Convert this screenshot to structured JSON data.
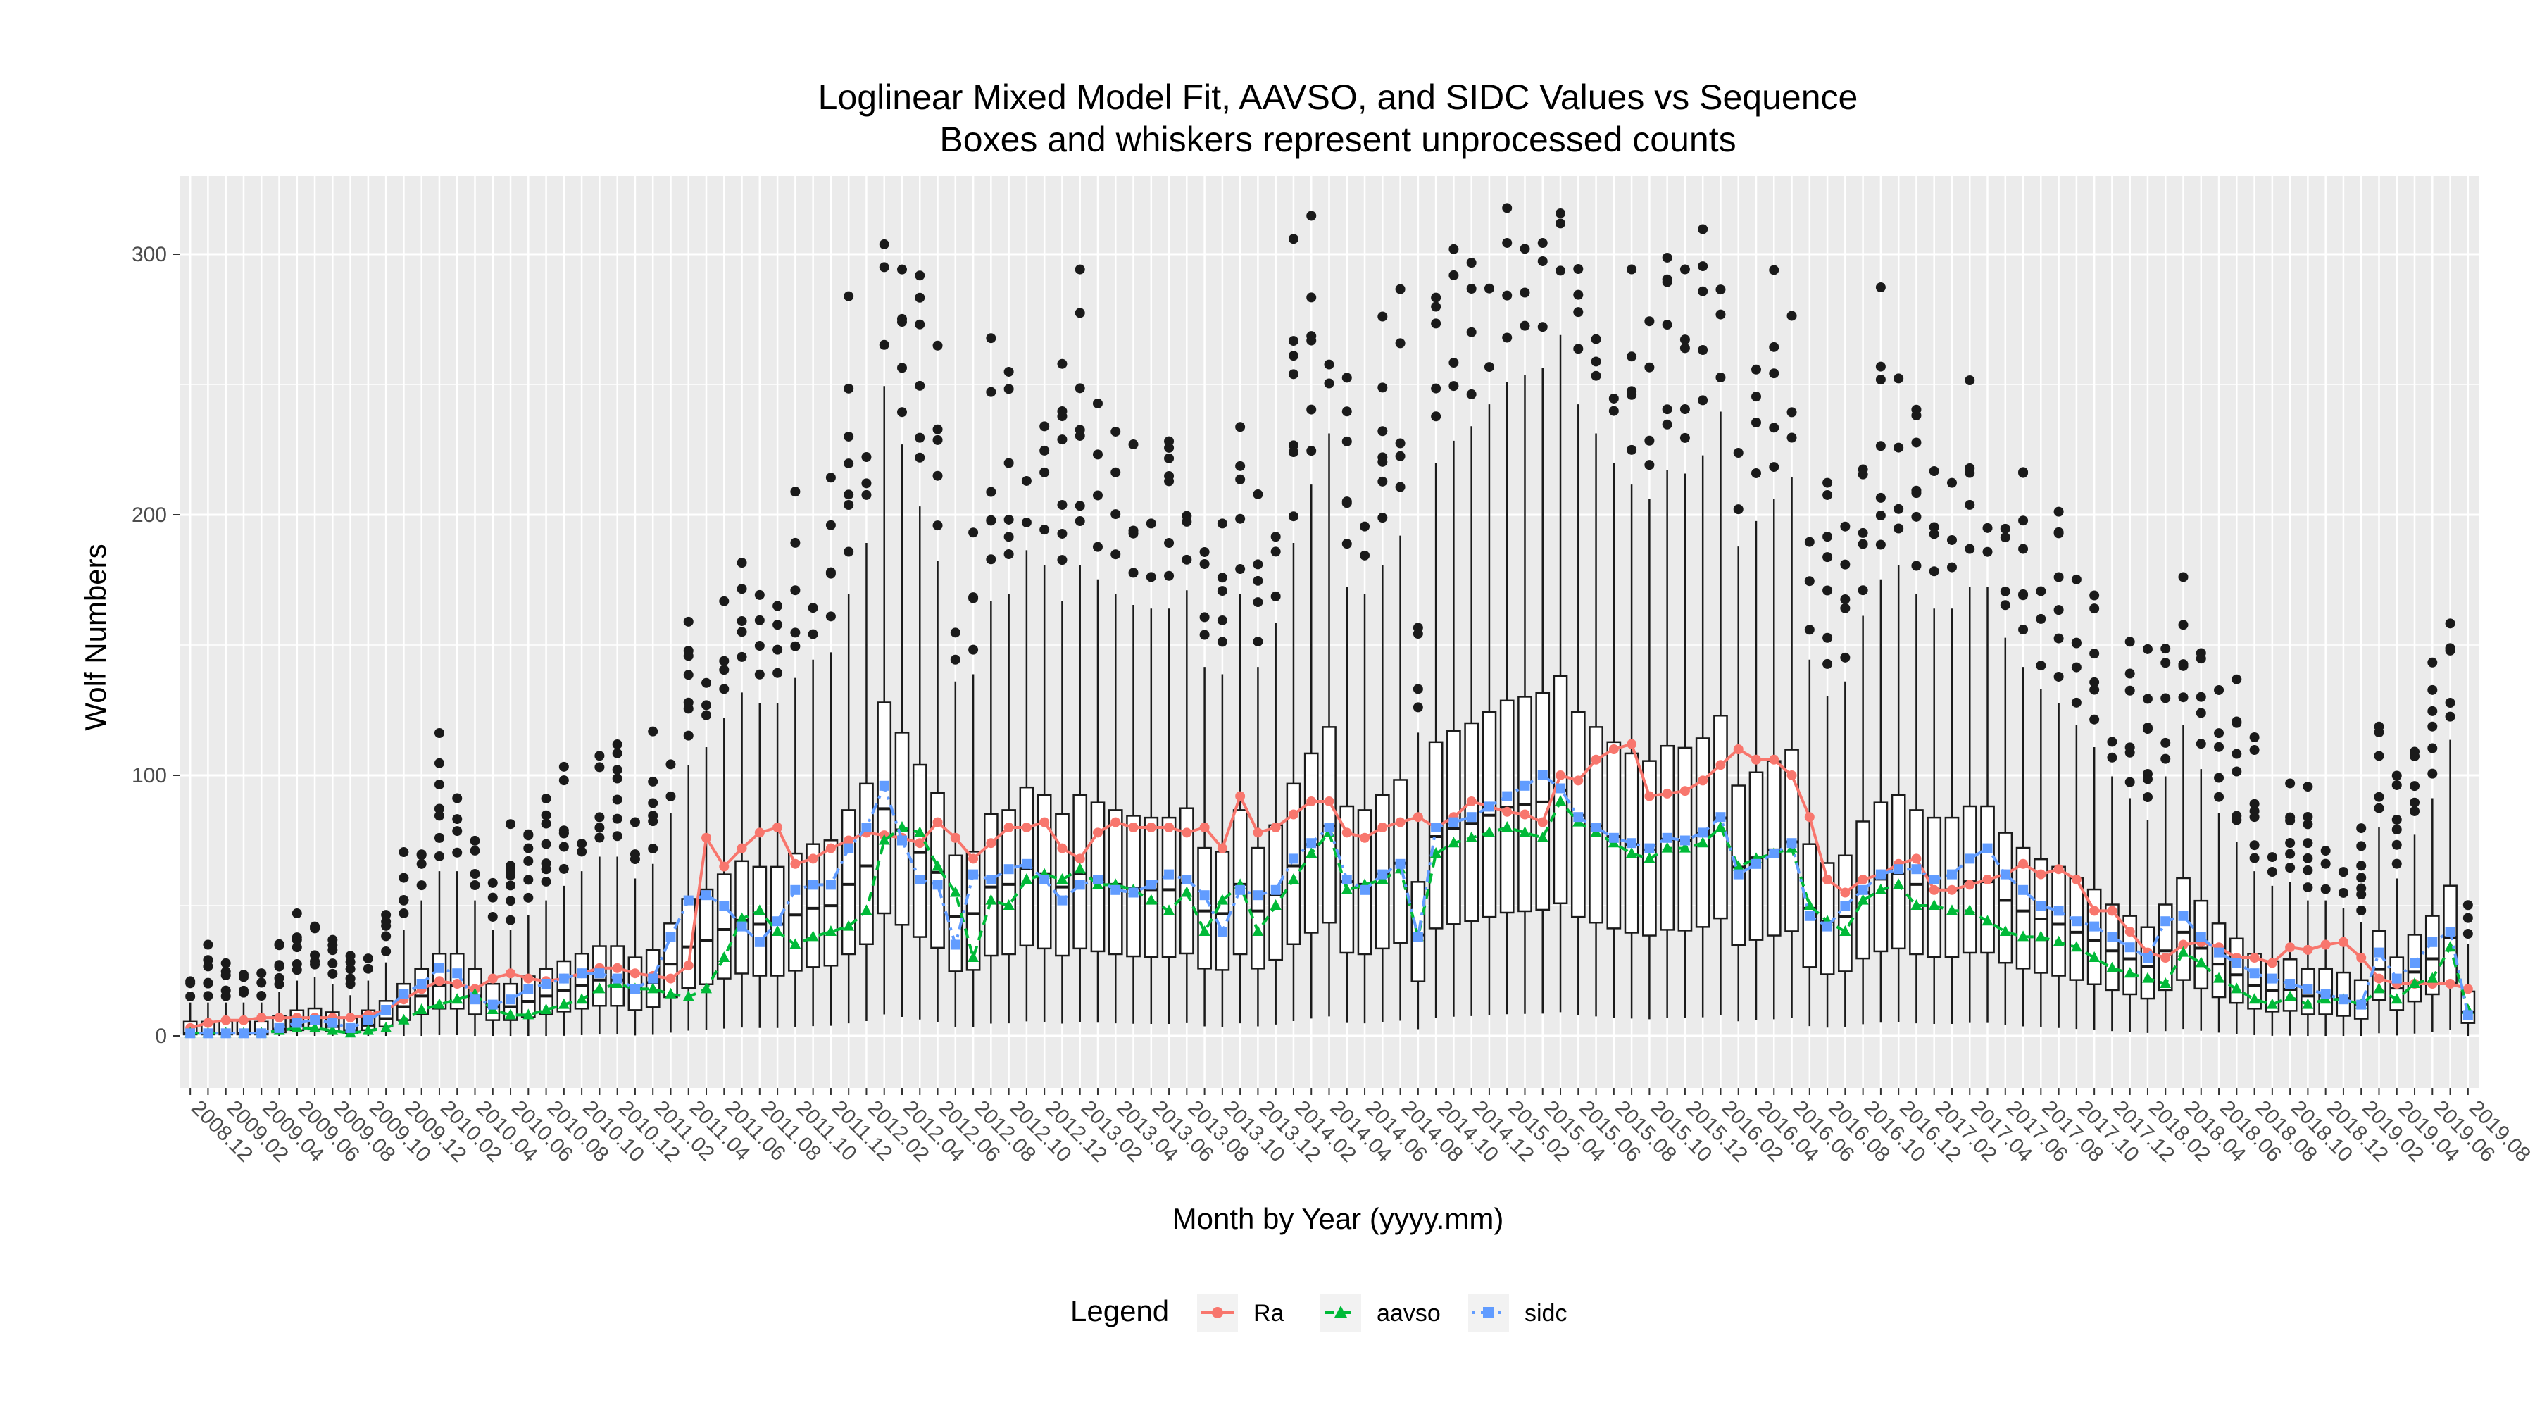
{
  "chart_data": {
    "type": "boxplot+line",
    "title": "Loglinear Mixed Model Fit, AAVSO, and SIDC Values vs Sequence",
    "subtitle": "Boxes and whiskers represent unprocessed counts",
    "xlabel": "Month by Year (yyyy.mm)",
    "ylabel": "Wolf Numbers",
    "ylim": [
      -20,
      330
    ],
    "yticks": [
      0,
      100,
      200,
      300
    ],
    "grid": true,
    "legend": {
      "title": "Legend",
      "position": "bottom",
      "entries": [
        {
          "name": "Ra",
          "color": "#F8766D",
          "marker": "circle",
          "dash": "solid"
        },
        {
          "name": "aavso",
          "color": "#00BA38",
          "marker": "triangle",
          "dash": "dashed"
        },
        {
          "name": "sidc",
          "color": "#619CFF",
          "marker": "square",
          "dash": "dotdash"
        }
      ]
    },
    "x_start": "2008.12",
    "n_months": 129,
    "tick_labels": [
      "2008.12",
      "2009.02",
      "2009.04",
      "2009.06",
      "2009.08",
      "2009.10",
      "2009.12",
      "2010.02",
      "2010.04",
      "2010.06",
      "2010.08",
      "2010.10",
      "2010.12",
      "2011.02",
      "2011.04",
      "2011.06",
      "2011.08",
      "2011.10",
      "2011.12",
      "2012.02",
      "2012.04",
      "2012.06",
      "2012.08",
      "2012.10",
      "2012.12",
      "2013.02",
      "2013.04",
      "2013.06",
      "2013.08",
      "2013.10",
      "2013.12",
      "2014.02",
      "2014.04",
      "2014.06",
      "2014.08",
      "2014.10",
      "2014.12",
      "2015.02",
      "2015.04",
      "2015.06",
      "2015.08",
      "2015.10",
      "2015.12",
      "2016.02",
      "2016.04",
      "2016.06",
      "2016.08",
      "2016.10",
      "2016.12",
      "2017.02",
      "2017.04",
      "2017.06",
      "2017.08",
      "2017.10",
      "2017.12",
      "2018.02",
      "2018.04",
      "2018.06",
      "2018.08",
      "2018.10",
      "2018.12",
      "2019.02",
      "2019.04",
      "2019.06",
      "2019.08"
    ],
    "series": [
      {
        "name": "Ra",
        "values": [
          3,
          5,
          6,
          6,
          7,
          7,
          7,
          7,
          7,
          7,
          8,
          10,
          14,
          18,
          21,
          20,
          18,
          22,
          24,
          22,
          21,
          22,
          24,
          26,
          26,
          24,
          23,
          22,
          27,
          76,
          65,
          72,
          78,
          80,
          66,
          68,
          72,
          75,
          78,
          77,
          76,
          74,
          82,
          76,
          68,
          74,
          80,
          80,
          82,
          72,
          68,
          78,
          82,
          80,
          80,
          80,
          78,
          80,
          72,
          92,
          78,
          80,
          85,
          90,
          90,
          78,
          76,
          80,
          82,
          84,
          80,
          84,
          90,
          88,
          86,
          85,
          82,
          100,
          98,
          106,
          110,
          112,
          92,
          93,
          94,
          98,
          104,
          110,
          106,
          106,
          100,
          84,
          60,
          55,
          60,
          62,
          66,
          68,
          56,
          56,
          58,
          60,
          62,
          66,
          62,
          64,
          60,
          48,
          48,
          40,
          32,
          30,
          35,
          36,
          34,
          30,
          30,
          28,
          34,
          33,
          35,
          36,
          30,
          22,
          20,
          20,
          20,
          20,
          18
        ]
      },
      {
        "name": "aavso",
        "values": [
          1,
          1,
          1,
          1,
          1,
          2,
          3,
          3,
          2,
          1,
          2,
          3,
          6,
          10,
          12,
          14,
          16,
          10,
          8,
          8,
          10,
          12,
          14,
          18,
          20,
          18,
          18,
          16,
          15,
          18,
          30,
          45,
          48,
          40,
          35,
          38,
          40,
          42,
          48,
          75,
          80,
          78,
          65,
          55,
          30,
          52,
          50,
          60,
          62,
          60,
          64,
          58,
          58,
          56,
          52,
          48,
          55,
          40,
          52,
          58,
          40,
          50,
          60,
          70,
          78,
          56,
          58,
          60,
          64,
          38,
          70,
          74,
          76,
          78,
          80,
          78,
          76,
          90,
          82,
          78,
          74,
          70,
          68,
          72,
          72,
          74,
          80,
          65,
          68,
          70,
          72,
          50,
          44,
          40,
          52,
          56,
          58,
          50,
          50,
          48,
          48,
          44,
          40,
          38,
          38,
          36,
          34,
          30,
          26,
          24,
          22,
          20,
          32,
          28,
          22,
          18,
          14,
          12,
          15,
          12,
          14,
          14,
          12,
          18,
          14,
          20,
          22,
          34,
          10
        ]
      },
      {
        "name": "sidc",
        "values": [
          1,
          1,
          1,
          1,
          1,
          3,
          5,
          6,
          5,
          3,
          6,
          10,
          16,
          20,
          26,
          24,
          14,
          12,
          14,
          18,
          20,
          22,
          24,
          24,
          22,
          18,
          22,
          38,
          52,
          54,
          50,
          42,
          36,
          44,
          56,
          58,
          58,
          72,
          80,
          96,
          75,
          60,
          58,
          35,
          62,
          60,
          64,
          66,
          60,
          52,
          58,
          60,
          56,
          55,
          58,
          62,
          60,
          54,
          40,
          56,
          54,
          56,
          68,
          74,
          80,
          60,
          56,
          62,
          66,
          38,
          80,
          82,
          84,
          88,
          92,
          96,
          100,
          95,
          84,
          80,
          76,
          74,
          72,
          76,
          75,
          78,
          84,
          62,
          66,
          70,
          74,
          46,
          42,
          50,
          56,
          62,
          64,
          64,
          60,
          62,
          68,
          72,
          62,
          56,
          50,
          48,
          44,
          42,
          38,
          34,
          30,
          44,
          46,
          38,
          32,
          28,
          24,
          22,
          20,
          18,
          16,
          14,
          12,
          32,
          22,
          28,
          36,
          40,
          8
        ]
      }
    ]
  }
}
